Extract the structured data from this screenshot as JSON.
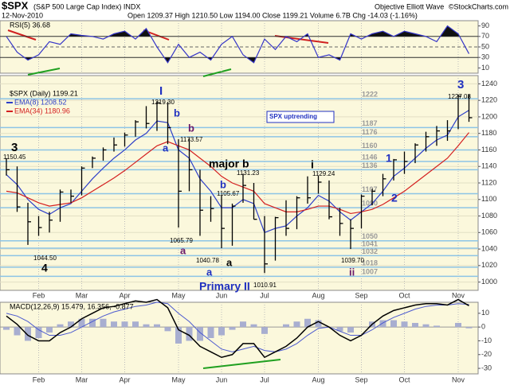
{
  "header": {
    "symbol": "$SPX",
    "name": "(S&P 500 Large Cap Index) INDX",
    "date": "12-Nov-2010",
    "quote": "Open 1209.37  High 1210.50  Low 1194.00  Close 1199.21  Volume 6.7B  Chg -14.03 (-1.16%)",
    "author": "Objective Elliott Wave",
    "source": "©StockCharts.com"
  },
  "chart_data": [
    {
      "type": "rsi",
      "label": "RSI(5) 36.68",
      "color": "#3535c8",
      "fill": "#111111",
      "categories": [
        null,
        null,
        null,
        "Feb",
        null,
        null,
        null,
        "Mar",
        null,
        null,
        null,
        "Apr",
        null,
        null,
        null,
        null,
        "May",
        null,
        null,
        null,
        "Jun",
        null,
        null,
        null,
        "Jul",
        null,
        null,
        null,
        null,
        "Aug",
        null,
        null,
        null,
        "Sep",
        null,
        null,
        null,
        "Oct",
        null,
        null,
        null,
        null,
        "Nov",
        null
      ],
      "values": [
        70,
        40,
        25,
        35,
        60,
        55,
        75,
        72,
        70,
        65,
        75,
        80,
        65,
        85,
        50,
        20,
        55,
        30,
        40,
        25,
        55,
        70,
        35,
        20,
        65,
        45,
        70,
        60,
        75,
        30,
        35,
        25,
        75,
        65,
        75,
        80,
        70,
        80,
        75,
        70,
        60,
        90,
        75,
        37
      ],
      "ylim": [
        0,
        100
      ],
      "yticks": [
        90,
        70,
        50,
        30,
        10
      ],
      "overbought": 70,
      "oversold": 30
    },
    {
      "type": "ohlc",
      "title": "$SPX (Daily) 1199.21",
      "color": "#000000",
      "categories": [
        null,
        null,
        null,
        "Feb",
        null,
        null,
        null,
        "Mar",
        null,
        null,
        null,
        "Apr",
        null,
        null,
        null,
        null,
        "May",
        null,
        null,
        null,
        "Jun",
        null,
        null,
        null,
        "Jul",
        null,
        null,
        null,
        null,
        "Aug",
        null,
        null,
        null,
        "Sep",
        null,
        null,
        null,
        "Oct",
        null,
        null,
        null,
        null,
        "Nov",
        null
      ],
      "high": [
        1150,
        1140,
        1096,
        1080,
        1085,
        1112,
        1112,
        1140,
        1152,
        1163,
        1175,
        1181,
        1196,
        1213,
        1219,
        1218,
        1173,
        1174,
        1136,
        1104,
        1105,
        1095,
        1131,
        1120,
        1080,
        1079,
        1099,
        1104,
        1128,
        1129,
        1123,
        1090,
        1076,
        1106,
        1113,
        1131,
        1149,
        1158,
        1168,
        1182,
        1189,
        1196,
        1227,
        1227
      ],
      "low": [
        1129,
        1085,
        1045,
        1056,
        1060,
        1073,
        1096,
        1105,
        1138,
        1147,
        1158,
        1164,
        1176,
        1186,
        1183,
        1167,
        1066,
        1110,
        1056,
        1073,
        1041,
        1044,
        1096,
        1076,
        1011,
        1026,
        1056,
        1064,
        1095,
        1107,
        1076,
        1056,
        1040,
        1065,
        1093,
        1104,
        1123,
        1131,
        1144,
        1158,
        1165,
        1171,
        1185,
        1194
      ],
      "close": [
        1136,
        1091,
        1073,
        1066,
        1075,
        1109,
        1104,
        1138,
        1150,
        1160,
        1166,
        1178,
        1194,
        1192,
        1217,
        1187,
        1110,
        1136,
        1087,
        1089,
        1065,
        1092,
        1117,
        1076,
        1022,
        1078,
        1065,
        1102,
        1102,
        1121,
        1079,
        1071,
        1065,
        1104,
        1110,
        1125,
        1148,
        1146,
        1166,
        1176,
        1183,
        1183,
        1225,
        1199
      ],
      "series": [
        {
          "name": "EMA(8) 1208.52",
          "color": "#2d3fc8",
          "values": [
            1130,
            1118,
            1100,
            1088,
            1082,
            1090,
            1095,
            1110,
            1125,
            1138,
            1150,
            1160,
            1172,
            1180,
            1195,
            1193,
            1160,
            1150,
            1125,
            1110,
            1090,
            1090,
            1100,
            1095,
            1060,
            1065,
            1068,
            1080,
            1090,
            1105,
            1098,
            1085,
            1075,
            1085,
            1095,
            1110,
            1128,
            1138,
            1150,
            1162,
            1172,
            1178,
            1200,
            1208
          ]
        },
        {
          "name": "EMA(34) 1180.96",
          "color": "#d42020",
          "values": [
            1110,
            1108,
            1102,
            1096,
            1092,
            1094,
            1096,
            1102,
            1110,
            1118,
            1126,
            1135,
            1145,
            1155,
            1165,
            1170,
            1165,
            1160,
            1150,
            1140,
            1128,
            1120,
            1115,
            1110,
            1095,
            1090,
            1085,
            1085,
            1088,
            1092,
            1092,
            1088,
            1083,
            1085,
            1088,
            1094,
            1102,
            1110,
            1120,
            1130,
            1140,
            1150,
            1165,
            1181
          ]
        }
      ],
      "levels": [
        1222,
        1187,
        1176,
        1160,
        1146,
        1136,
        1107,
        1090,
        1050,
        1041,
        1032,
        1018,
        1007
      ],
      "level_color": "#8cc4e6",
      "ylim": [
        990,
        1250
      ],
      "yticks": [
        1000,
        1020,
        1040,
        1060,
        1080,
        1100,
        1120,
        1140,
        1160,
        1180,
        1200,
        1220,
        1240
      ],
      "grid": true,
      "annotations": [
        {
          "text": "3",
          "color": "#000000"
        },
        {
          "text": "1150.45",
          "color": "#000000"
        },
        {
          "text": "4",
          "color": "#000000"
        },
        {
          "text": "1044.50",
          "color": "#000000"
        },
        {
          "text": "I",
          "color": "#2030c0"
        },
        {
          "text": "1219.30",
          "color": "#000000"
        },
        {
          "text": "b",
          "color": "#2030c0"
        },
        {
          "text": "a",
          "color": "#2030c0"
        },
        {
          "text": "1173.57",
          "color": "#000000"
        },
        {
          "text": "b",
          "color": "#6a1a6a"
        },
        {
          "text": "a",
          "color": "#6a1a6a"
        },
        {
          "text": "1065.79",
          "color": "#000000"
        },
        {
          "text": "major b",
          "color": "#000000"
        },
        {
          "text": "1131.23",
          "color": "#000000"
        },
        {
          "text": "b",
          "color": "#2030c0"
        },
        {
          "text": "1105.67",
          "color": "#000000"
        },
        {
          "text": "1040.78",
          "color": "#000000"
        },
        {
          "text": "a",
          "color": "#000000"
        },
        {
          "text": "a",
          "color": "#2030c0"
        },
        {
          "text": "Primary II",
          "color": "#2030c0"
        },
        {
          "text": "1010.91",
          "color": "#000000"
        },
        {
          "text": "i",
          "color": "#000000"
        },
        {
          "text": "1129.24",
          "color": "#000000"
        },
        {
          "text": "1039.70",
          "color": "#000000"
        },
        {
          "text": "ii",
          "color": "#6a1a6a"
        },
        {
          "text": "1",
          "color": "#2030c0"
        },
        {
          "text": "2",
          "color": "#2030c0"
        },
        {
          "text": "3",
          "color": "#2030c0"
        },
        {
          "text": "1227.08",
          "color": "#000000"
        },
        {
          "text": "SPX uptrending",
          "color": "#2030c0"
        }
      ]
    },
    {
      "type": "macd",
      "label": "MACD(12,26,9) 15.479, 16.356, -0.877",
      "categories": [
        null,
        null,
        null,
        "Feb",
        null,
        null,
        null,
        "Mar",
        null,
        null,
        null,
        "Apr",
        null,
        null,
        null,
        null,
        "May",
        null,
        null,
        null,
        "Jun",
        null,
        null,
        null,
        "Jul",
        null,
        null,
        null,
        null,
        "Aug",
        null,
        null,
        null,
        "Sep",
        null,
        null,
        null,
        "Oct",
        null,
        null,
        null,
        null,
        "Nov",
        null
      ],
      "series": [
        {
          "name": "MACD",
          "color": "#000000",
          "values": [
            8,
            2,
            -6,
            -10,
            -10,
            -4,
            0,
            6,
            10,
            14,
            15,
            17,
            19,
            18,
            20,
            14,
            -2,
            -6,
            -14,
            -18,
            -22,
            -20,
            -12,
            -12,
            -22,
            -18,
            -14,
            -8,
            0,
            4,
            0,
            -6,
            -10,
            -6,
            2,
            8,
            12,
            14,
            16,
            17,
            17,
            16,
            20,
            15.5
          ]
        },
        {
          "name": "Signal",
          "color": "#4c5ad0",
          "values": [
            10,
            8,
            4,
            -2,
            -6,
            -6,
            -4,
            0,
            4,
            8,
            11,
            13,
            15,
            16,
            18,
            17,
            10,
            4,
            -4,
            -10,
            -16,
            -18,
            -16,
            -14,
            -17,
            -18,
            -16,
            -12,
            -6,
            -1,
            0,
            -3,
            -6,
            -6,
            -2,
            3,
            7,
            10,
            13,
            15,
            16,
            16,
            17,
            16.4
          ]
        },
        {
          "name": "Histogram",
          "color": "#a8aed0",
          "values": [
            -2,
            -6,
            -10,
            -8,
            -4,
            2,
            4,
            6,
            6,
            6,
            4,
            4,
            4,
            2,
            2,
            -3,
            -12,
            -10,
            -10,
            -8,
            -6,
            -2,
            4,
            2,
            -5,
            0,
            2,
            4,
            6,
            5,
            0,
            -3,
            -4,
            0,
            4,
            5,
            5,
            4,
            3,
            2,
            1,
            0,
            3,
            -0.9
          ]
        }
      ],
      "ylim": [
        -34,
        18
      ],
      "yticks": [
        10,
        0,
        -10,
        -20,
        -30
      ]
    }
  ]
}
